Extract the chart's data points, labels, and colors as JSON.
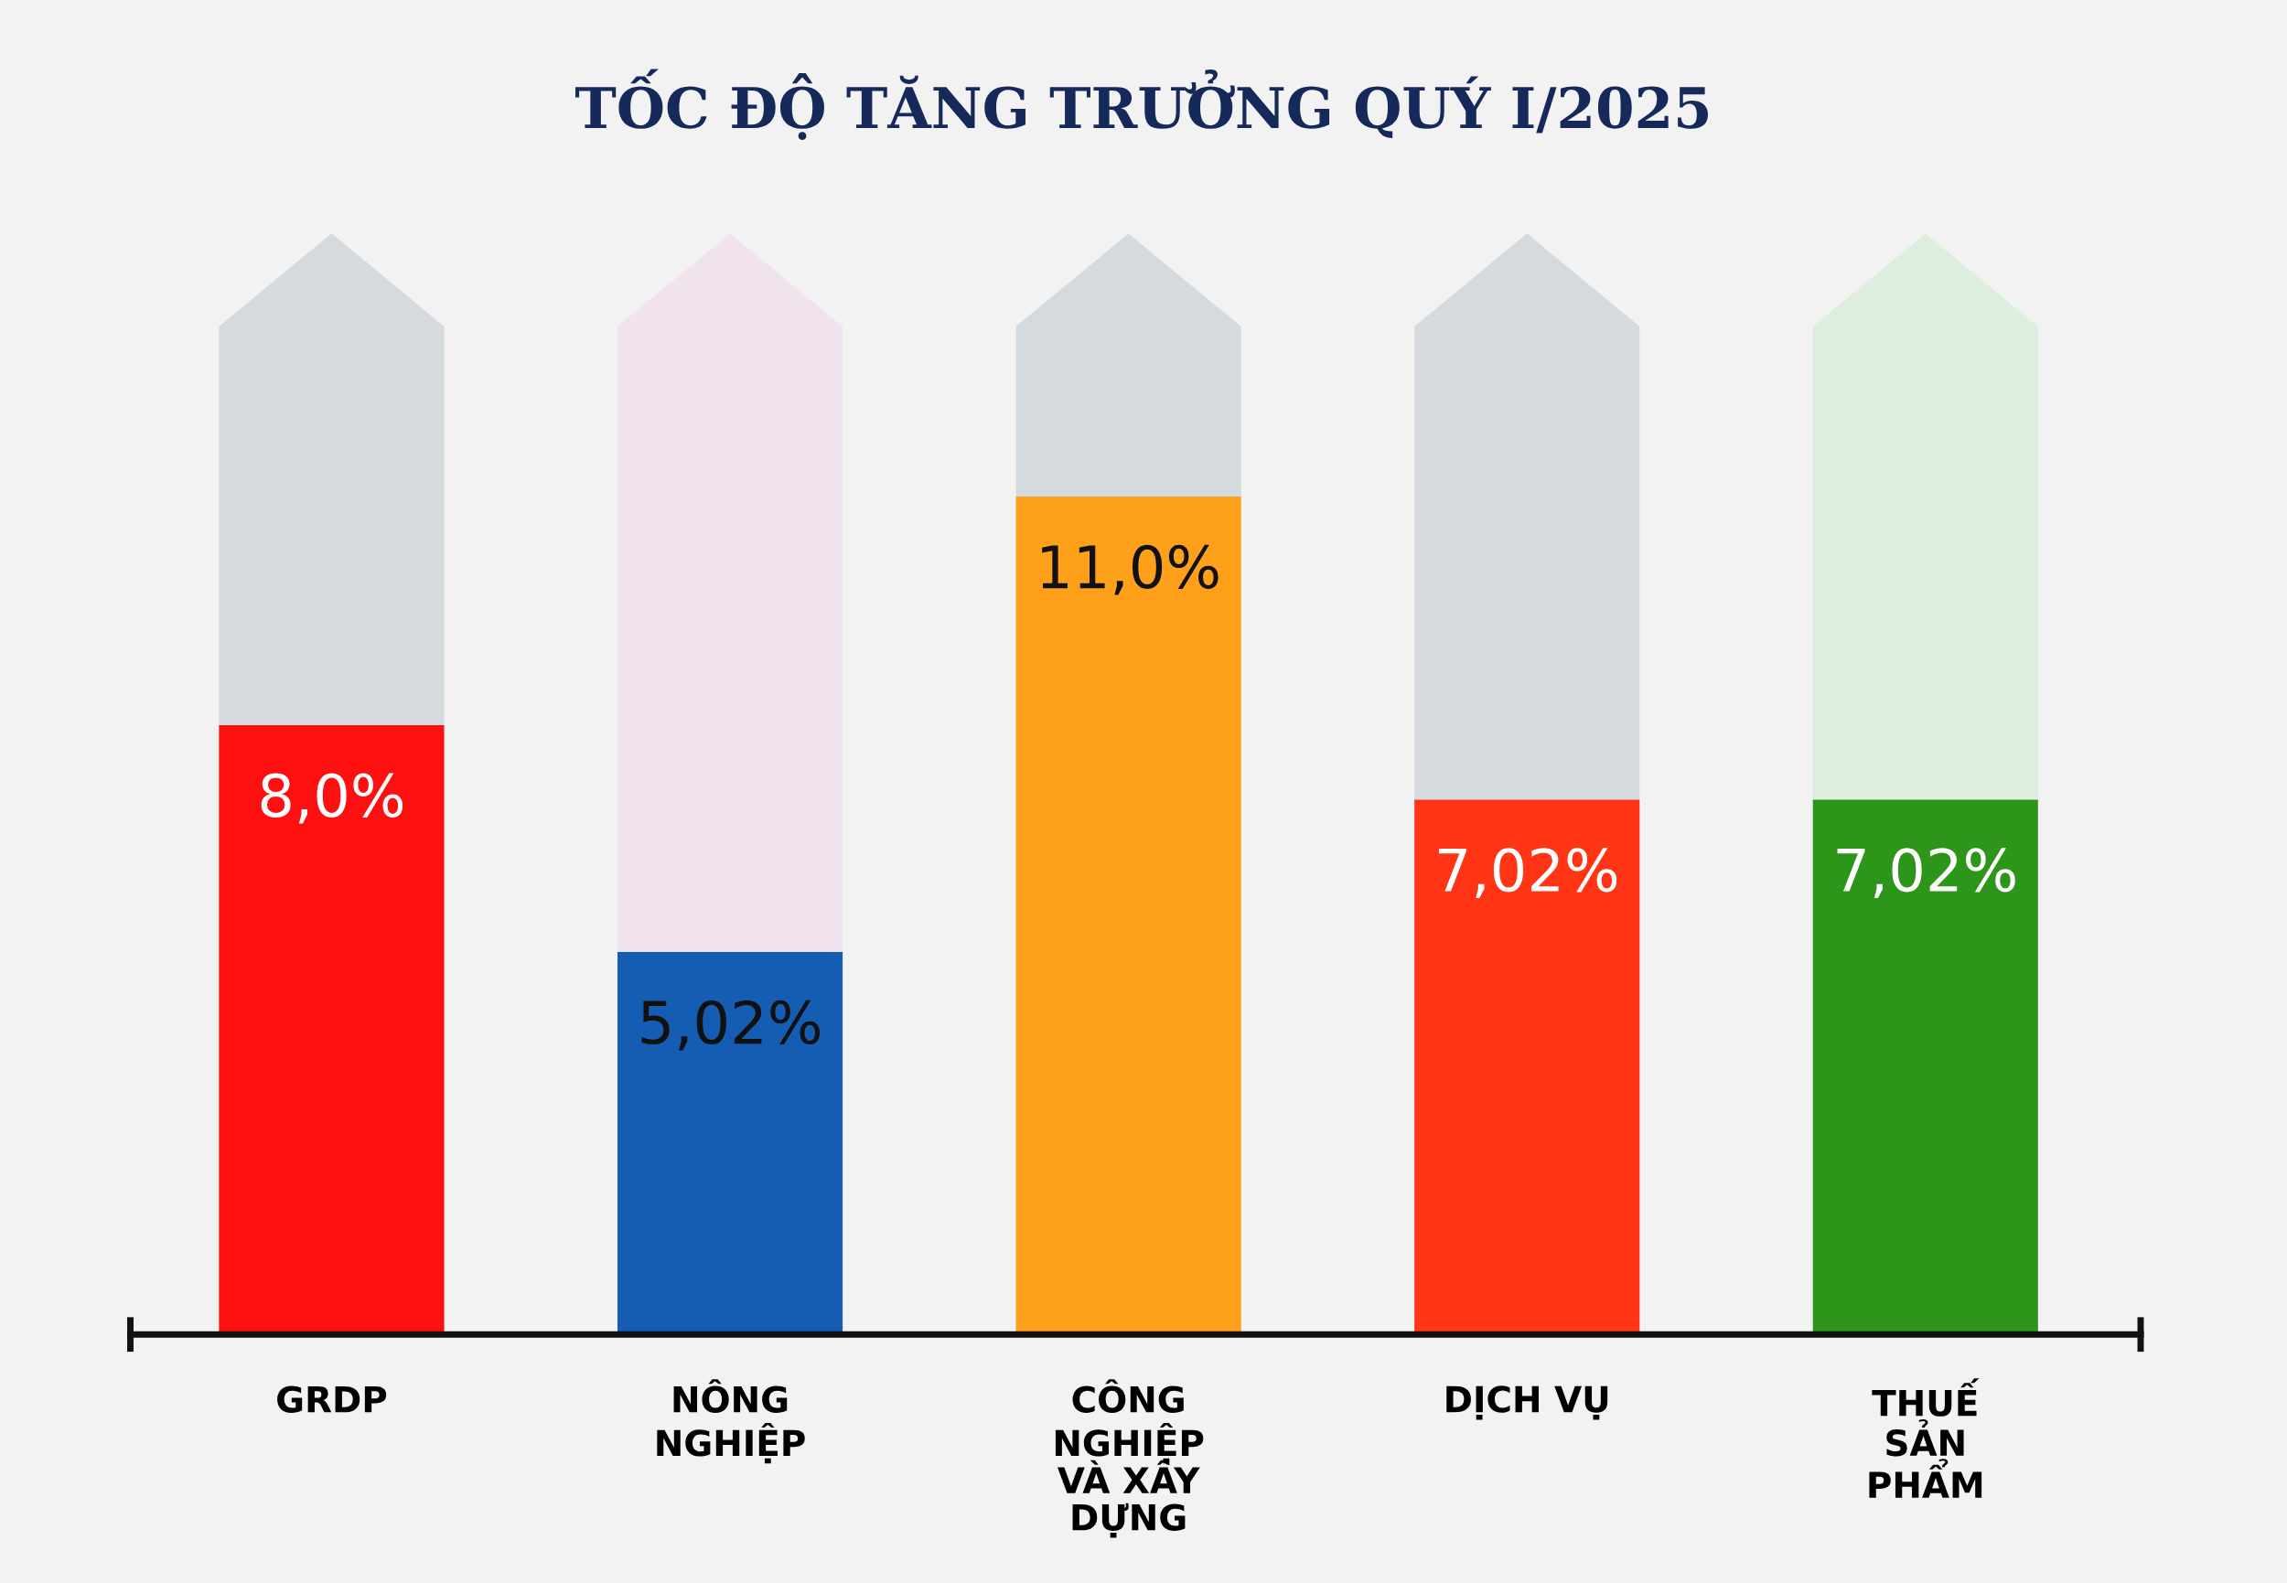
{
  "chart_data": {
    "type": "bar",
    "title": "TỐC ĐỘ TĂNG TRƯỞNG QUÝ I/2025",
    "categories": [
      "GRDP",
      "NÔNG\nNGHIỆP",
      "CÔNG\nNGHIỆP\nVÀ XÂY\nDỰNG",
      "DỊCH VỤ",
      "THUẾ\nSẢN\nPHẨM"
    ],
    "values": [
      8.0,
      5.02,
      11.0,
      7.02,
      7.02
    ],
    "colors": [
      "#ff1010",
      "#155db2",
      "#ffa01a",
      "#ff3515",
      "#2d961a"
    ],
    "value_labels": [
      "8,0%",
      "5,02%",
      "11,0%",
      "7,02%",
      "7,02%"
    ],
    "grid": false,
    "legend": false
  }
}
